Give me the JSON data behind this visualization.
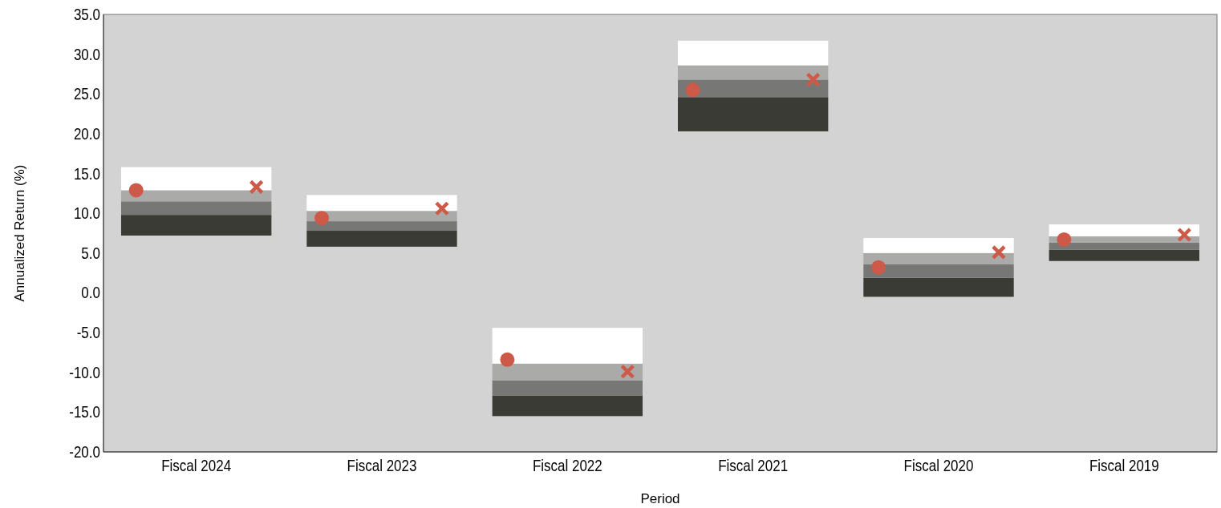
{
  "chart_data": {
    "type": "bar",
    "xlabel": "Period",
    "ylabel": "Annualized Return (%)",
    "categories": [
      "Fiscal 2024",
      "Fiscal 2023",
      "Fiscal 2022",
      "Fiscal 2021",
      "Fiscal 2020",
      "Fiscal 2019"
    ],
    "series": [
      {
        "color": "#3a3b35",
        "base": [
          7.2,
          5.8,
          -15.5,
          20.3,
          -0.5,
          4.0
        ],
        "values": [
          2.6,
          2.0,
          2.6,
          4.3,
          2.4,
          1.4
        ]
      },
      {
        "color": "#777775",
        "base": [
          9.8,
          7.8,
          -12.9,
          24.6,
          1.9,
          5.4
        ],
        "values": [
          1.7,
          1.2,
          1.9,
          2.2,
          1.7,
          0.9
        ]
      },
      {
        "color": "#aaaaa8",
        "base": [
          11.5,
          9.0,
          -11.0,
          26.8,
          3.6,
          6.3
        ],
        "values": [
          1.4,
          1.3,
          2.1,
          1.8,
          1.4,
          0.8
        ]
      },
      {
        "color": "#ffffff",
        "base": [
          12.9,
          10.3,
          -8.9,
          28.6,
          5.0,
          7.1
        ],
        "values": [
          2.9,
          2.0,
          4.5,
          3.1,
          1.9,
          1.5
        ]
      },
      {
        "type": "scatter",
        "marker": "circle",
        "color": "#cd5a48",
        "x": [
          "Fiscal 2024",
          "Fiscal 2023",
          "Fiscal 2022",
          "Fiscal 2021",
          "Fiscal 2020",
          "Fiscal 2019"
        ],
        "values": [
          12.9,
          9.4,
          -8.4,
          25.5,
          3.2,
          6.7
        ]
      },
      {
        "type": "scatter",
        "marker": "cross",
        "color": "#cd5a48",
        "x": [
          "Fiscal 2024",
          "Fiscal 2023",
          "Fiscal 2022",
          "Fiscal 2021",
          "Fiscal 2020",
          "Fiscal 2019"
        ],
        "values": [
          13.3,
          10.6,
          -9.9,
          26.8,
          5.1,
          7.3
        ]
      }
    ],
    "ylim": [
      -20,
      35
    ],
    "yticks": [
      {
        "value": -20,
        "label": "-20.0"
      },
      {
        "value": -15,
        "label": "-15.0"
      },
      {
        "value": -10,
        "label": "-10.0"
      },
      {
        "value": -5,
        "label": "-5.0"
      },
      {
        "value": 0,
        "label": "0.0"
      },
      {
        "value": 5,
        "label": "5.0"
      },
      {
        "value": 10,
        "label": "10.0"
      },
      {
        "value": 15,
        "label": "15.0"
      },
      {
        "value": 20,
        "label": "20.0"
      },
      {
        "value": 25,
        "label": "25.0"
      },
      {
        "value": 30,
        "label": "30.0"
      },
      {
        "value": 35,
        "label": "35.0"
      }
    ],
    "grid": false
  }
}
